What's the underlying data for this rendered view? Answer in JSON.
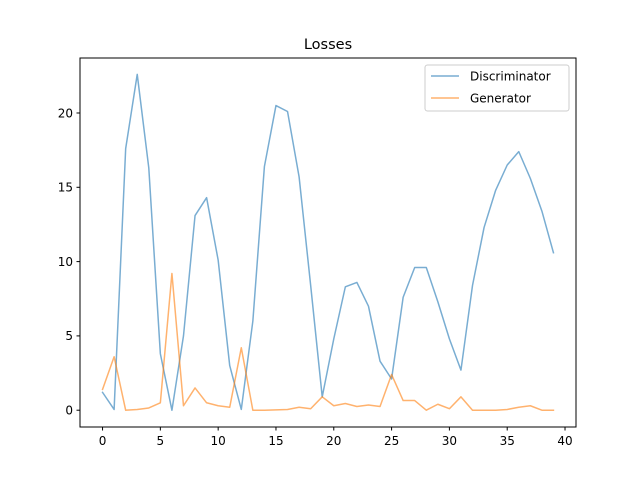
{
  "chart_data": {
    "type": "line",
    "title": "Losses",
    "xlabel": "",
    "ylabel": "",
    "x": [
      0,
      1,
      2,
      3,
      4,
      5,
      6,
      7,
      8,
      9,
      10,
      11,
      12,
      13,
      14,
      15,
      16,
      17,
      18,
      19,
      20,
      21,
      22,
      23,
      24,
      25,
      26,
      27,
      28,
      29,
      30,
      31,
      32,
      33,
      34,
      35,
      36,
      37,
      38,
      39
    ],
    "xlim": [
      -1.95,
      40.95
    ],
    "ylim": [
      -1.13,
      23.7
    ],
    "xticks": [
      0,
      5,
      10,
      15,
      20,
      25,
      30,
      35,
      40
    ],
    "xtick_labels": [
      "0",
      "5",
      "10",
      "15",
      "20",
      "25",
      "30",
      "35",
      "40"
    ],
    "yticks": [
      0,
      5,
      10,
      15,
      20
    ],
    "ytick_labels": [
      "0",
      "5",
      "10",
      "15",
      "20"
    ],
    "grid": false,
    "legend_position": "top-right",
    "series": [
      {
        "name": "Discriminator",
        "color": "#1f77b4",
        "values": [
          1.2,
          0.05,
          17.6,
          22.6,
          16.3,
          3.8,
          0.0,
          5.0,
          13.1,
          14.3,
          10.1,
          3.0,
          0.05,
          6.0,
          16.4,
          20.5,
          20.1,
          15.7,
          8.4,
          0.9,
          4.8,
          8.3,
          8.6,
          7.0,
          3.3,
          2.1,
          7.6,
          9.6,
          9.6,
          7.3,
          4.8,
          2.7,
          8.4,
          12.3,
          14.8,
          16.5,
          17.4,
          15.6,
          13.4,
          10.6
        ]
      },
      {
        "name": "Generator",
        "color": "#ff7f0e",
        "values": [
          1.4,
          3.6,
          0.0,
          0.05,
          0.15,
          0.5,
          9.2,
          0.3,
          1.5,
          0.5,
          0.3,
          0.2,
          4.2,
          0.0,
          0.0,
          0.02,
          0.05,
          0.2,
          0.1,
          0.9,
          0.3,
          0.45,
          0.25,
          0.35,
          0.25,
          2.4,
          0.65,
          0.65,
          0.0,
          0.4,
          0.1,
          0.9,
          0.0,
          0.0,
          0.0,
          0.05,
          0.2,
          0.3,
          0.0,
          0.0
        ]
      }
    ]
  }
}
